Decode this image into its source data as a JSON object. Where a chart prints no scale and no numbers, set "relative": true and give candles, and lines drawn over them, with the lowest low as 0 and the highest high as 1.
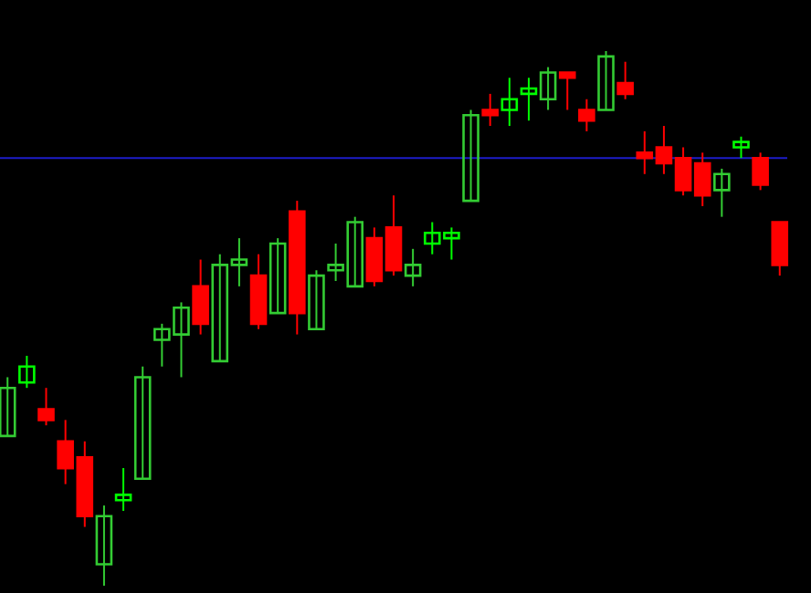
{
  "chart_data": {
    "type": "candlestick",
    "relative": true,
    "categories": [
      null,
      null,
      null,
      null,
      null,
      null,
      null,
      null,
      null,
      null,
      null,
      null,
      null,
      null,
      null,
      null,
      null,
      null,
      null,
      null,
      null,
      null,
      null,
      null,
      null,
      null,
      null,
      null,
      null,
      null,
      null,
      null,
      null,
      null,
      null,
      null,
      null,
      null,
      null,
      null,
      null
    ],
    "ohlc": [
      [
        0.28,
        0.39,
        0.28,
        0.37
      ],
      [
        0.38,
        0.43,
        0.37,
        0.41
      ],
      [
        0.33,
        0.37,
        0.3,
        0.31
      ],
      [
        0.27,
        0.31,
        0.19,
        0.22
      ],
      [
        0.24,
        0.27,
        0.11,
        0.13
      ],
      [
        0.04,
        0.15,
        0,
        0.13
      ],
      [
        0.16,
        0.22,
        0.14,
        0.17
      ],
      [
        0.2,
        0.41,
        0.2,
        0.39
      ],
      [
        0.46,
        0.49,
        0.41,
        0.48
      ],
      [
        0.47,
        0.53,
        0.39,
        0.52
      ],
      [
        0.56,
        0.61,
        0.47,
        0.49
      ],
      [
        0.42,
        0.62,
        0.42,
        0.6
      ],
      [
        0.6,
        0.65,
        0.56,
        0.61
      ],
      [
        0.58,
        0.62,
        0.48,
        0.49
      ],
      [
        0.51,
        0.65,
        0.51,
        0.64
      ],
      [
        0.7,
        0.72,
        0.47,
        0.51
      ],
      [
        0.48,
        0.59,
        0.48,
        0.58
      ],
      [
        0.59,
        0.64,
        0.57,
        0.6
      ],
      [
        0.56,
        0.69,
        0.56,
        0.68
      ],
      [
        0.65,
        0.67,
        0.56,
        0.57
      ],
      [
        0.67,
        0.73,
        0.58,
        0.59
      ],
      [
        0.58,
        0.63,
        0.56,
        0.6
      ],
      [
        0.64,
        0.68,
        0.62,
        0.66
      ],
      [
        0.65,
        0.67,
        0.61,
        0.66
      ],
      [
        0.72,
        0.89,
        0.72,
        0.88
      ],
      [
        0.89,
        0.92,
        0.86,
        0.88
      ],
      [
        0.89,
        0.95,
        0.86,
        0.91
      ],
      [
        0.92,
        0.95,
        0.87,
        0.93
      ],
      [
        0.91,
        0.97,
        0.89,
        0.96
      ],
      [
        0.96,
        0.96,
        0.89,
        0.95
      ],
      [
        0.89,
        0.91,
        0.85,
        0.87
      ],
      [
        0.89,
        1,
        0.89,
        0.99
      ],
      [
        0.94,
        0.98,
        0.91,
        0.92
      ],
      [
        0.81,
        0.85,
        0.77,
        0.8
      ],
      [
        0.82,
        0.86,
        0.77,
        0.79
      ],
      [
        0.8,
        0.82,
        0.73,
        0.74
      ],
      [
        0.79,
        0.81,
        0.71,
        0.73
      ],
      [
        0.74,
        0.78,
        0.69,
        0.77
      ],
      [
        0.82,
        0.84,
        0.8,
        0.83
      ],
      [
        0.8,
        0.81,
        0.74,
        0.75
      ],
      [
        0.68,
        0.68,
        0.58,
        0.6
      ]
    ],
    "colors": [
      "#33cc33",
      "#00ff00",
      "#ff0000",
      "#ff0000",
      "#ff0000",
      "#33cc33",
      "#00ff00",
      "#33cc33",
      "#33cc33",
      "#33cc33",
      "#ff0000",
      "#33cc33",
      "#33cc33",
      "#ff0000",
      "#33cc33",
      "#ff0000",
      "#33cc33",
      "#33cc33",
      "#33cc33",
      "#ff0000",
      "#ff0000",
      "#33cc33",
      "#00ff00",
      "#00ff00",
      "#33cc33",
      "#ff0000",
      "#00ff00",
      "#00ff00",
      "#33cc33",
      "#ff0000",
      "#ff0000",
      "#33cc33",
      "#ff0000",
      "#ff0000",
      "#ff0000",
      "#ff0000",
      "#ff0000",
      "#33cc33",
      "#00ff00",
      "#ff0000",
      "#ff0000"
    ],
    "ref_lines": [
      {
        "axis": "y",
        "value": 0.8,
        "color": "#1c1cc8"
      }
    ]
  }
}
